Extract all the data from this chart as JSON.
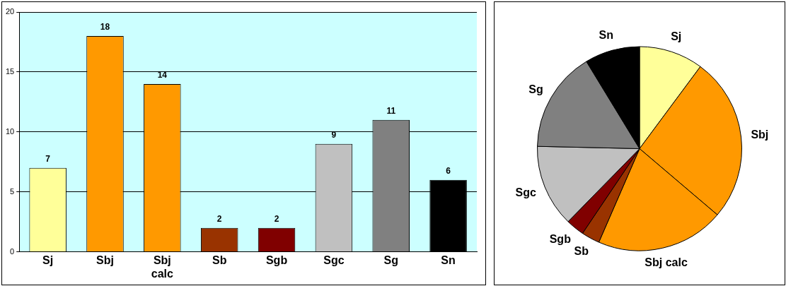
{
  "chart_data": [
    {
      "type": "bar",
      "categories": [
        "Sj",
        "Sbj",
        "Sbj calc",
        "Sb",
        "Sgb",
        "Sgc",
        "Sg",
        "Sn"
      ],
      "values": [
        7,
        18,
        14,
        2,
        2,
        9,
        11,
        6
      ],
      "colors": [
        "#ffff99",
        "#ff9900",
        "#ff9900",
        "#993300",
        "#800000",
        "#c0c0c0",
        "#808080",
        "#000000"
      ],
      "ylim": [
        0,
        20
      ],
      "yticks": [
        0,
        5,
        10,
        15,
        20
      ],
      "grid": "y",
      "data_labels": true,
      "legend": false
    },
    {
      "type": "pie",
      "categories": [
        "Sj",
        "Sbj",
        "Sbj calc",
        "Sb",
        "Sgb",
        "Sgc",
        "Sg",
        "Sn"
      ],
      "values": [
        10.14,
        26.09,
        20.29,
        2.9,
        2.9,
        13.04,
        15.94,
        8.7
      ],
      "colors": [
        "#ffff99",
        "#ff9900",
        "#ff9900",
        "#993300",
        "#800000",
        "#c0c0c0",
        "#808080",
        "#000000"
      ],
      "legend": false
    }
  ]
}
